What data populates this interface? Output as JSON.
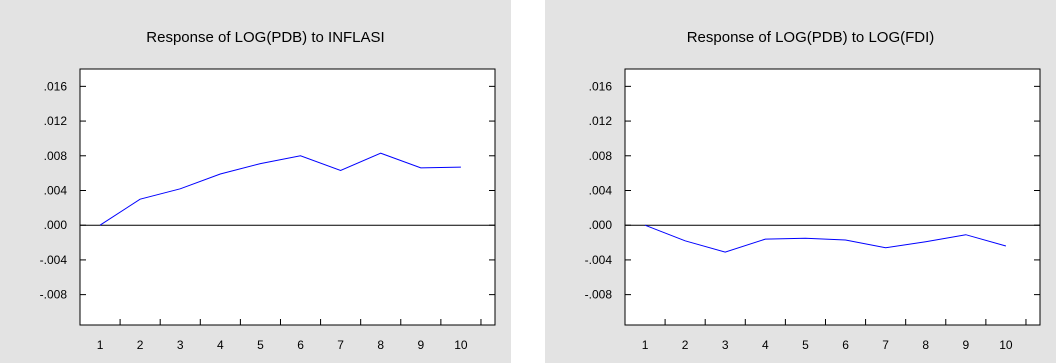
{
  "colors": {
    "panel_bg": "#e3e3e3",
    "plot_bg": "#ffffff",
    "line": "#0000ff",
    "axis": "#000000"
  },
  "chart_data": [
    {
      "type": "line",
      "title": "Response of LOG(PDB) to INFLASI",
      "xlabel": "",
      "ylabel": "",
      "categories": [
        "1",
        "2",
        "3",
        "4",
        "5",
        "6",
        "7",
        "8",
        "9",
        "10"
      ],
      "yticks": [
        ".016",
        ".012",
        ".008",
        ".004",
        ".000",
        "-.004",
        "-.008"
      ],
      "ylim": [
        -0.0115,
        0.018
      ],
      "zero_line": true,
      "grid": false,
      "series": [
        {
          "values": [
            0.0,
            0.003,
            0.0042,
            0.0059,
            0.0071,
            0.008,
            0.0063,
            0.0083,
            0.0066,
            0.0067
          ]
        }
      ]
    },
    {
      "type": "line",
      "title": "Response of LOG(PDB) to LOG(FDI)",
      "xlabel": "",
      "ylabel": "",
      "categories": [
        "1",
        "2",
        "3",
        "4",
        "5",
        "6",
        "7",
        "8",
        "9",
        "10"
      ],
      "yticks": [
        ".016",
        ".012",
        ".008",
        ".004",
        ".000",
        "-.004",
        "-.008"
      ],
      "ylim": [
        -0.0115,
        0.018
      ],
      "zero_line": true,
      "grid": false,
      "series": [
        {
          "values": [
            0.0,
            -0.0018,
            -0.0031,
            -0.0016,
            -0.0015,
            -0.0017,
            -0.0026,
            -0.0019,
            -0.0011,
            -0.0024
          ]
        }
      ]
    }
  ]
}
